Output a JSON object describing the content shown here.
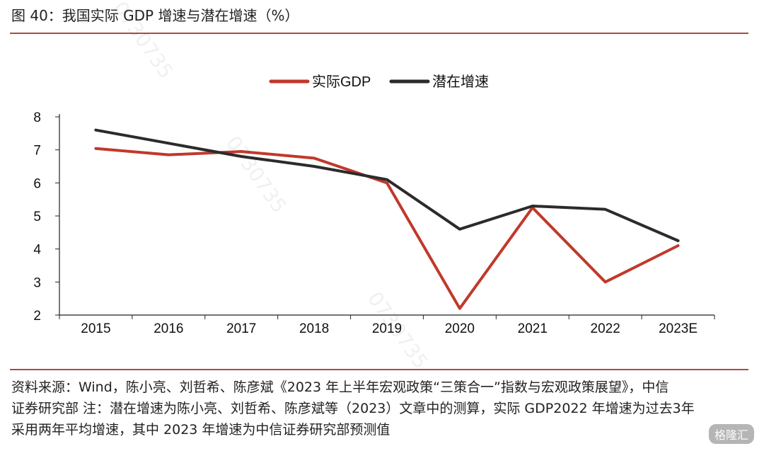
{
  "figure": {
    "title": "图 40：我国实际 GDP 增速与潜在增速（%）",
    "source_lines": [
      "资料来源：Wind，陈小亮、刘哲希、陈彦斌《2023 年上半年宏观政策“三策合一”指数与宏观政策展望》，中信",
      "证券研究部 注：潜在增速为陈小亮、刘哲希、陈彦斌等（2023）文章中的测算，实际 GDP2022 年增速为过去3年",
      "采用两年平均增速，其中 2023 年增速为中信证券研究部预测值"
    ],
    "watermark": "0730735",
    "brand": "格隆汇"
  },
  "chart_data": {
    "type": "line",
    "categories": [
      "2015",
      "2016",
      "2017",
      "2018",
      "2019",
      "2020",
      "2021",
      "2022",
      "2023E"
    ],
    "series": [
      {
        "name": "实际GDP",
        "color": "#c0392b",
        "values": [
          7.04,
          6.85,
          6.95,
          6.75,
          6.0,
          2.2,
          5.25,
          3.0,
          4.1
        ]
      },
      {
        "name": "潜在增速",
        "color": "#2b2b2b",
        "values": [
          7.6,
          7.2,
          6.8,
          6.5,
          6.1,
          4.6,
          5.3,
          5.2,
          4.25
        ]
      }
    ],
    "ylim": [
      2,
      8
    ],
    "yticks": [
      "2",
      "3",
      "4",
      "5",
      "6",
      "7",
      "8"
    ],
    "legend_position": "top-center",
    "grid": false,
    "title": "",
    "xlabel": "",
    "ylabel": ""
  }
}
